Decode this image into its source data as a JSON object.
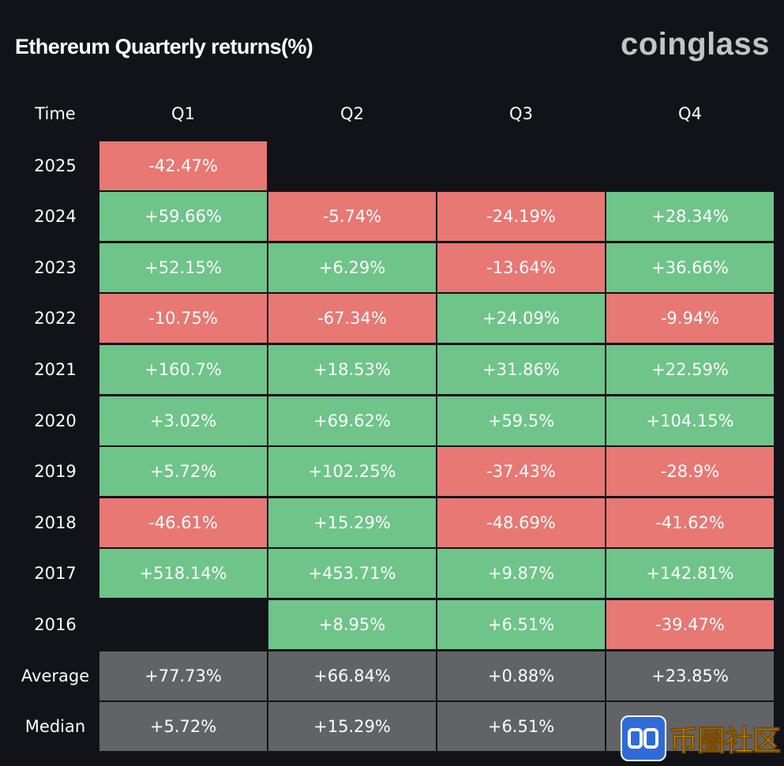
{
  "title": "Ethereum Quarterly returns(%)",
  "brand": "coinglass",
  "watermark_text": "币圈社区",
  "colors": {
    "positive": "#6fc48a",
    "negative": "#e77874",
    "stat": "#626366",
    "background": "#111318"
  },
  "chart_data": {
    "type": "table",
    "columns": [
      "Time",
      "Q1",
      "Q2",
      "Q3",
      "Q4"
    ],
    "rows": [
      {
        "label": "2025",
        "values": [
          "-42.47%",
          "",
          "",
          ""
        ]
      },
      {
        "label": "2024",
        "values": [
          "+59.66%",
          "-5.74%",
          "-24.19%",
          "+28.34%"
        ]
      },
      {
        "label": "2023",
        "values": [
          "+52.15%",
          "+6.29%",
          "-13.64%",
          "+36.66%"
        ]
      },
      {
        "label": "2022",
        "values": [
          "-10.75%",
          "-67.34%",
          "+24.09%",
          "-9.94%"
        ]
      },
      {
        "label": "2021",
        "values": [
          "+160.7%",
          "+18.53%",
          "+31.86%",
          "+22.59%"
        ]
      },
      {
        "label": "2020",
        "values": [
          "+3.02%",
          "+69.62%",
          "+59.5%",
          "+104.15%"
        ]
      },
      {
        "label": "2019",
        "values": [
          "+5.72%",
          "+102.25%",
          "-37.43%",
          "-28.9%"
        ]
      },
      {
        "label": "2018",
        "values": [
          "-46.61%",
          "+15.29%",
          "-48.69%",
          "-41.62%"
        ]
      },
      {
        "label": "2017",
        "values": [
          "+518.14%",
          "+453.71%",
          "+9.87%",
          "+142.81%"
        ]
      },
      {
        "label": "2016",
        "values": [
          "",
          "+8.95%",
          "+6.51%",
          "-39.47%"
        ]
      }
    ],
    "summary": [
      {
        "label": "Average",
        "values": [
          "+77.73%",
          "+66.84%",
          "+0.88%",
          "+23.85%"
        ]
      },
      {
        "label": "Median",
        "values": [
          "+5.72%",
          "+15.29%",
          "+6.51%",
          ""
        ]
      }
    ]
  }
}
